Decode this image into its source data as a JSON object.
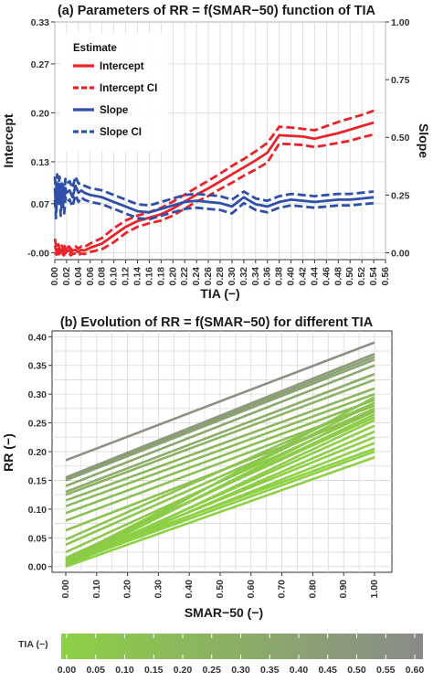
{
  "chart_data": [
    {
      "type": "line",
      "title": "(a) Parameters of RR = f(SMAR−50) function of TIA",
      "xlabel": "TIA (−)",
      "ylabel": "Intercept",
      "y2label": "Slope",
      "xlim": [
        0,
        0.56
      ],
      "ylim": [
        -0.01,
        0.33
      ],
      "y2lim": [
        -0.03,
        1.0
      ],
      "x_ticks": [
        "0.00",
        "0.02",
        "0.04",
        "0.06",
        "0.08",
        "0.10",
        "0.12",
        "0.14",
        "0.16",
        "0.18",
        "0.20",
        "0.22",
        "0.24",
        "0.26",
        "0.28",
        "0.30",
        "0.32",
        "0.34",
        "0.36",
        "0.38",
        "0.40",
        "0.42",
        "0.44",
        "0.46",
        "0.48",
        "0.50",
        "0.52",
        "0.54",
        "0.56"
      ],
      "y_ticks": [
        "-0.00",
        "0.07",
        "0.13",
        "0.20",
        "0.27",
        "0.33"
      ],
      "y2_ticks": [
        "0.00",
        "0.25",
        "0.50",
        "0.75",
        "1.00"
      ],
      "grid": true,
      "legend": {
        "title": "Estimate",
        "placement": "top-left",
        "entries": [
          {
            "label": "Intercept",
            "color": "#e8242a",
            "dash": "solid"
          },
          {
            "label": "Intercept CI",
            "color": "#e8242a",
            "dash": "dashed"
          },
          {
            "label": "Slope",
            "color": "#2f4fa8",
            "dash": "solid"
          },
          {
            "label": "Slope CI",
            "color": "#2f4fa8",
            "dash": "dashed"
          }
        ]
      },
      "series": [
        {
          "name": "Intercept",
          "color": "#e8242a",
          "dash": "solid",
          "axis": "left",
          "x": [
            0.0,
            0.003,
            0.006,
            0.009,
            0.012,
            0.015,
            0.018,
            0.021,
            0.024,
            0.027,
            0.03,
            0.035,
            0.04,
            0.045,
            0.05,
            0.06,
            0.08,
            0.1,
            0.12,
            0.14,
            0.16,
            0.18,
            0.2,
            0.22,
            0.24,
            0.26,
            0.28,
            0.3,
            0.32,
            0.34,
            0.36,
            0.38,
            0.4,
            0.42,
            0.44,
            0.46,
            0.48,
            0.5,
            0.52,
            0.54
          ],
          "y": [
            0.01,
            0.002,
            0.006,
            0.0,
            0.005,
            0.001,
            0.006,
            0.002,
            0.004,
            0.0,
            0.003,
            0.004,
            0.001,
            0.004,
            0.003,
            0.007,
            0.013,
            0.025,
            0.037,
            0.045,
            0.05,
            0.055,
            0.063,
            0.073,
            0.083,
            0.092,
            0.102,
            0.112,
            0.122,
            0.132,
            0.143,
            0.168,
            0.167,
            0.166,
            0.163,
            0.167,
            0.171,
            0.176,
            0.181,
            0.186
          ]
        },
        {
          "name": "Intercept CI",
          "color": "#e8242a",
          "dash": "dashed",
          "axis": "left",
          "x": [
            0.0,
            0.003,
            0.006,
            0.009,
            0.012,
            0.015,
            0.018,
            0.021,
            0.024,
            0.027,
            0.03,
            0.035,
            0.04,
            0.045,
            0.05,
            0.06,
            0.08,
            0.1,
            0.12,
            0.14,
            0.16,
            0.18,
            0.2,
            0.22,
            0.24,
            0.26,
            0.28,
            0.3,
            0.32,
            0.34,
            0.36,
            0.38,
            0.4,
            0.42,
            0.44,
            0.46,
            0.48,
            0.5,
            0.52,
            0.54
          ],
          "y": [
            0.02,
            0.006,
            0.012,
            0.004,
            0.01,
            0.006,
            0.012,
            0.007,
            0.009,
            0.005,
            0.008,
            0.009,
            0.006,
            0.009,
            0.008,
            0.013,
            0.021,
            0.035,
            0.046,
            0.053,
            0.058,
            0.064,
            0.073,
            0.083,
            0.093,
            0.103,
            0.113,
            0.124,
            0.134,
            0.145,
            0.157,
            0.18,
            0.179,
            0.177,
            0.175,
            0.181,
            0.187,
            0.192,
            0.197,
            0.203
          ]
        },
        {
          "name": "Intercept CI",
          "color": "#e8242a",
          "dash": "dashed",
          "axis": "left",
          "x": [
            0.0,
            0.003,
            0.006,
            0.009,
            0.012,
            0.015,
            0.018,
            0.021,
            0.024,
            0.027,
            0.03,
            0.035,
            0.04,
            0.045,
            0.05,
            0.06,
            0.08,
            0.1,
            0.12,
            0.14,
            0.16,
            0.18,
            0.2,
            0.22,
            0.24,
            0.26,
            0.28,
            0.3,
            0.32,
            0.34,
            0.36,
            0.38,
            0.4,
            0.42,
            0.44,
            0.46,
            0.48,
            0.5,
            0.52,
            0.54
          ],
          "y": [
            0.0,
            -0.003,
            0.0,
            -0.004,
            0.0,
            -0.004,
            0.0,
            -0.003,
            -0.001,
            -0.004,
            -0.002,
            -0.001,
            -0.004,
            -0.001,
            -0.002,
            0.001,
            0.005,
            0.015,
            0.028,
            0.037,
            0.042,
            0.046,
            0.053,
            0.063,
            0.073,
            0.081,
            0.091,
            0.1,
            0.11,
            0.119,
            0.129,
            0.156,
            0.155,
            0.154,
            0.151,
            0.154,
            0.157,
            0.16,
            0.165,
            0.169
          ]
        },
        {
          "name": "Slope",
          "color": "#2f4fa8",
          "dash": "solid",
          "axis": "right",
          "x": [
            0.0,
            0.002,
            0.004,
            0.006,
            0.008,
            0.01,
            0.012,
            0.014,
            0.016,
            0.018,
            0.02,
            0.025,
            0.03,
            0.035,
            0.04,
            0.045,
            0.05,
            0.06,
            0.08,
            0.1,
            0.12,
            0.14,
            0.16,
            0.18,
            0.2,
            0.22,
            0.24,
            0.26,
            0.28,
            0.3,
            0.32,
            0.34,
            0.36,
            0.38,
            0.4,
            0.42,
            0.44,
            0.46,
            0.48,
            0.5,
            0.52,
            0.54
          ],
          "y": [
            0.28,
            0.2,
            0.3,
            0.24,
            0.29,
            0.21,
            0.27,
            0.25,
            0.22,
            0.28,
            0.26,
            0.27,
            0.24,
            0.29,
            0.26,
            0.27,
            0.26,
            0.25,
            0.24,
            0.22,
            0.2,
            0.18,
            0.175,
            0.19,
            0.205,
            0.22,
            0.225,
            0.22,
            0.215,
            0.2,
            0.24,
            0.21,
            0.2,
            0.22,
            0.23,
            0.225,
            0.22,
            0.225,
            0.23,
            0.23,
            0.235,
            0.24
          ]
        },
        {
          "name": "Slope CI",
          "color": "#2f4fa8",
          "dash": "dashed",
          "axis": "right",
          "x": [
            0.0,
            0.002,
            0.004,
            0.006,
            0.008,
            0.01,
            0.012,
            0.014,
            0.016,
            0.018,
            0.02,
            0.025,
            0.03,
            0.035,
            0.04,
            0.045,
            0.05,
            0.06,
            0.08,
            0.1,
            0.12,
            0.14,
            0.16,
            0.18,
            0.2,
            0.22,
            0.24,
            0.26,
            0.28,
            0.3,
            0.32,
            0.34,
            0.36,
            0.38,
            0.4,
            0.42,
            0.44,
            0.46,
            0.48,
            0.5,
            0.52,
            0.54
          ],
          "y": [
            0.33,
            0.25,
            0.34,
            0.28,
            0.33,
            0.26,
            0.31,
            0.29,
            0.27,
            0.32,
            0.3,
            0.31,
            0.28,
            0.33,
            0.3,
            0.3,
            0.29,
            0.28,
            0.27,
            0.25,
            0.23,
            0.21,
            0.205,
            0.22,
            0.235,
            0.25,
            0.255,
            0.25,
            0.245,
            0.23,
            0.265,
            0.235,
            0.225,
            0.245,
            0.255,
            0.25,
            0.245,
            0.25,
            0.255,
            0.255,
            0.26,
            0.265
          ]
        },
        {
          "name": "Slope CI",
          "color": "#2f4fa8",
          "dash": "dashed",
          "axis": "right",
          "x": [
            0.0,
            0.002,
            0.004,
            0.006,
            0.008,
            0.01,
            0.012,
            0.014,
            0.016,
            0.018,
            0.02,
            0.025,
            0.03,
            0.035,
            0.04,
            0.045,
            0.05,
            0.06,
            0.08,
            0.1,
            0.12,
            0.14,
            0.16,
            0.18,
            0.2,
            0.22,
            0.24,
            0.26,
            0.28,
            0.3,
            0.32,
            0.34,
            0.36,
            0.38,
            0.4,
            0.42,
            0.44,
            0.46,
            0.48,
            0.5,
            0.52,
            0.54
          ],
          "y": [
            0.23,
            0.15,
            0.26,
            0.2,
            0.25,
            0.16,
            0.23,
            0.21,
            0.17,
            0.24,
            0.22,
            0.23,
            0.2,
            0.25,
            0.22,
            0.24,
            0.23,
            0.22,
            0.21,
            0.19,
            0.17,
            0.15,
            0.145,
            0.16,
            0.175,
            0.19,
            0.195,
            0.19,
            0.185,
            0.17,
            0.215,
            0.185,
            0.175,
            0.195,
            0.205,
            0.2,
            0.195,
            0.2,
            0.205,
            0.205,
            0.21,
            0.215
          ]
        }
      ]
    },
    {
      "type": "line",
      "title": "(b) Evolution of RR = f(SMAR−50) for different TIA",
      "xlabel": "SMAR−50 (−)",
      "ylabel": "RR (−)",
      "xlim": [
        0,
        1.0
      ],
      "ylim": [
        -0.01,
        0.41
      ],
      "x_ticks": [
        "0.00",
        "0.10",
        "0.20",
        "0.30",
        "0.40",
        "0.50",
        "0.60",
        "0.70",
        "0.80",
        "0.90",
        "1.00"
      ],
      "y_ticks": [
        "0.00",
        "0.05",
        "0.10",
        "0.15",
        "0.20",
        "0.25",
        "0.30",
        "0.35",
        "0.40"
      ],
      "grid": true,
      "line_segments": [
        {
          "tia": 0.0,
          "y0": 0.0,
          "y1": 0.19
        },
        {
          "tia": 0.0,
          "y0": 0.005,
          "y1": 0.2
        },
        {
          "tia": 0.0,
          "y0": 0.01,
          "y1": 0.205
        },
        {
          "tia": 0.0,
          "y0": 0.003,
          "y1": 0.215
        },
        {
          "tia": 0.01,
          "y0": 0.008,
          "y1": 0.225
        },
        {
          "tia": 0.01,
          "y0": 0.002,
          "y1": 0.235
        },
        {
          "tia": 0.01,
          "y0": 0.006,
          "y1": 0.245
        },
        {
          "tia": 0.02,
          "y0": 0.0,
          "y1": 0.255
        },
        {
          "tia": 0.02,
          "y0": 0.01,
          "y1": 0.265
        },
        {
          "tia": 0.03,
          "y0": 0.004,
          "y1": 0.275
        },
        {
          "tia": 0.03,
          "y0": 0.012,
          "y1": 0.285
        },
        {
          "tia": 0.04,
          "y0": 0.003,
          "y1": 0.295
        },
        {
          "tia": 0.05,
          "y0": 0.015,
          "y1": 0.26
        },
        {
          "tia": 0.06,
          "y0": 0.025,
          "y1": 0.27
        },
        {
          "tia": 0.08,
          "y0": 0.038,
          "y1": 0.275
        },
        {
          "tia": 0.1,
          "y0": 0.047,
          "y1": 0.285
        },
        {
          "tia": 0.12,
          "y0": 0.063,
          "y1": 0.27
        },
        {
          "tia": 0.14,
          "y0": 0.08,
          "y1": 0.28
        },
        {
          "tia": 0.16,
          "y0": 0.093,
          "y1": 0.29
        },
        {
          "tia": 0.18,
          "y0": 0.105,
          "y1": 0.3
        },
        {
          "tia": 0.22,
          "y0": 0.115,
          "y1": 0.31
        },
        {
          "tia": 0.26,
          "y0": 0.125,
          "y1": 0.325
        },
        {
          "tia": 0.3,
          "y0": 0.13,
          "y1": 0.335
        },
        {
          "tia": 0.34,
          "y0": 0.14,
          "y1": 0.35
        },
        {
          "tia": 0.38,
          "y0": 0.15,
          "y1": 0.36
        },
        {
          "tia": 0.42,
          "y0": 0.152,
          "y1": 0.365
        },
        {
          "tia": 0.46,
          "y0": 0.155,
          "y1": 0.37
        },
        {
          "tia": 0.54,
          "y0": 0.185,
          "y1": 0.39
        }
      ],
      "colorbar": {
        "title": "TIA (−)",
        "min": 0.0,
        "max": 0.6,
        "ticks": [
          "0.00",
          "0.05",
          "0.10",
          "0.15",
          "0.20",
          "0.25",
          "0.30",
          "0.35",
          "0.40",
          "0.45",
          "0.50",
          "0.55",
          "0.60"
        ],
        "low_color": "#8cd044",
        "high_color": "#8a8a8a"
      }
    }
  ]
}
